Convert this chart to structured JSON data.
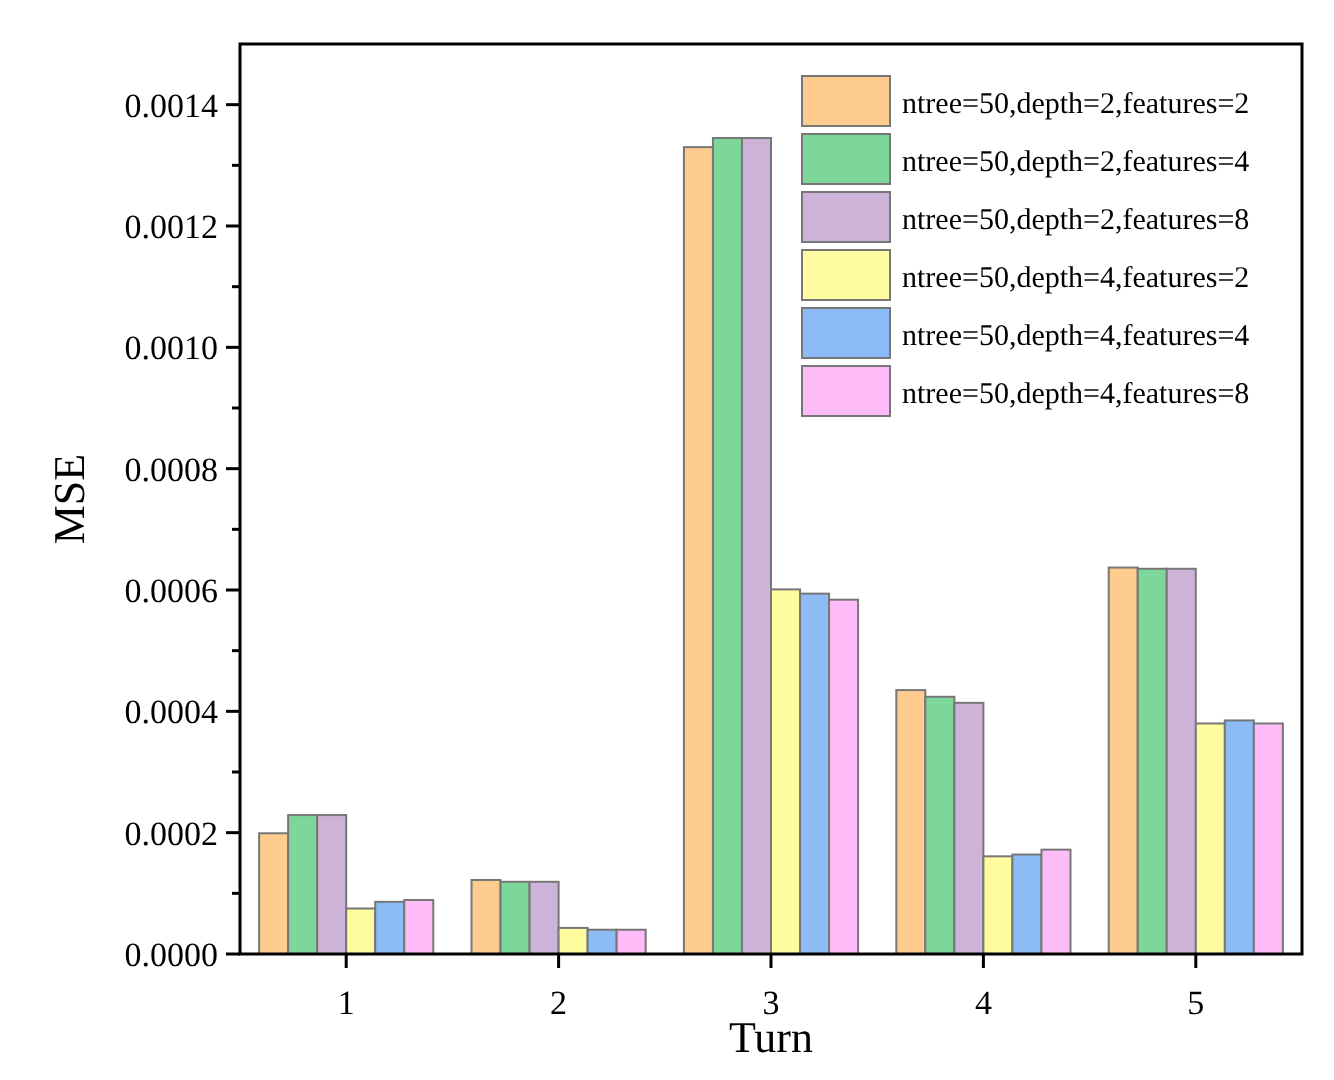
{
  "chart_data": {
    "type": "bar",
    "xlabel": "Turn",
    "ylabel": "MSE",
    "categories": [
      "1",
      "2",
      "3",
      "4",
      "5"
    ],
    "series": [
      {
        "name": "ntree=50,depth=2,features=2",
        "color": "#ffcc8f",
        "values": [
          0.000199,
          0.000122,
          0.00133,
          0.000435,
          0.000637
        ]
      },
      {
        "name": "ntree=50,depth=2,features=4",
        "color": "#7dd69a",
        "values": [
          0.000229,
          0.000119,
          0.001345,
          0.000424,
          0.000635
        ]
      },
      {
        "name": "ntree=50,depth=2,features=8",
        "color": "#cdb3d8",
        "values": [
          0.000229,
          0.000119,
          0.001345,
          0.000414,
          0.000635
        ]
      },
      {
        "name": "ntree=50,depth=4,features=2",
        "color": "#fffca0",
        "values": [
          7.5e-05,
          4.3e-05,
          0.000601,
          0.000161,
          0.00038
        ]
      },
      {
        "name": "ntree=50,depth=4,features=4",
        "color": "#8dbbf5",
        "values": [
          8.6e-05,
          4e-05,
          0.000594,
          0.000164,
          0.000385
        ]
      },
      {
        "name": "ntree=50,depth=4,features=8",
        "color": "#fdbcf8",
        "values": [
          8.9e-05,
          4e-05,
          0.000584,
          0.000172,
          0.00038
        ]
      }
    ],
    "ylim": [
      0,
      0.0015
    ],
    "yticks": [
      {
        "value": 0,
        "label": "0.0000"
      },
      {
        "value": 0.0002,
        "label": "0.0002"
      },
      {
        "value": 0.0004,
        "label": "0.0004"
      },
      {
        "value": 0.0006,
        "label": "0.0006"
      },
      {
        "value": 0.0008,
        "label": "0.0008"
      },
      {
        "value": 0.001,
        "label": "0.0010"
      },
      {
        "value": 0.0012,
        "label": "0.0012"
      },
      {
        "value": 0.0014,
        "label": "0.0014"
      }
    ],
    "grid": false,
    "legend": "top right"
  }
}
